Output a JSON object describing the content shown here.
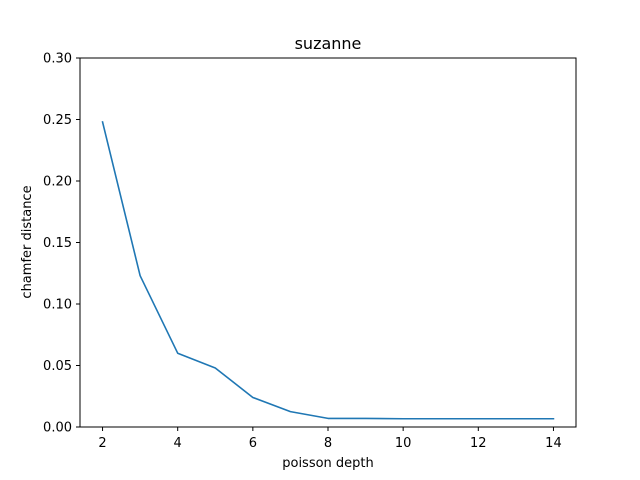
{
  "chart_data": {
    "type": "line",
    "title": "suzanne",
    "xlabel": "poisson depth",
    "ylabel": "chamfer distance",
    "xlim": [
      1.4,
      14.6
    ],
    "ylim": [
      0.0,
      0.3
    ],
    "xticks": [
      2,
      4,
      6,
      8,
      10,
      12,
      14
    ],
    "xtick_labels": [
      "2",
      "4",
      "6",
      "8",
      "10",
      "12",
      "14"
    ],
    "yticks": [
      0.0,
      0.05,
      0.1,
      0.15,
      0.2,
      0.25,
      0.3
    ],
    "ytick_labels": [
      "0.00",
      "0.05",
      "0.10",
      "0.15",
      "0.20",
      "0.25",
      "0.30"
    ],
    "grid": false,
    "series": [
      {
        "color": "#1f77b4",
        "x": [
          2,
          3,
          4,
          5,
          6,
          7,
          8,
          9,
          10,
          11,
          12,
          13,
          14
        ],
        "y": [
          0.248,
          0.123,
          0.06,
          0.048,
          0.024,
          0.0125,
          0.007,
          0.007,
          0.0067,
          0.0067,
          0.0067,
          0.0067,
          0.0067
        ]
      }
    ]
  }
}
